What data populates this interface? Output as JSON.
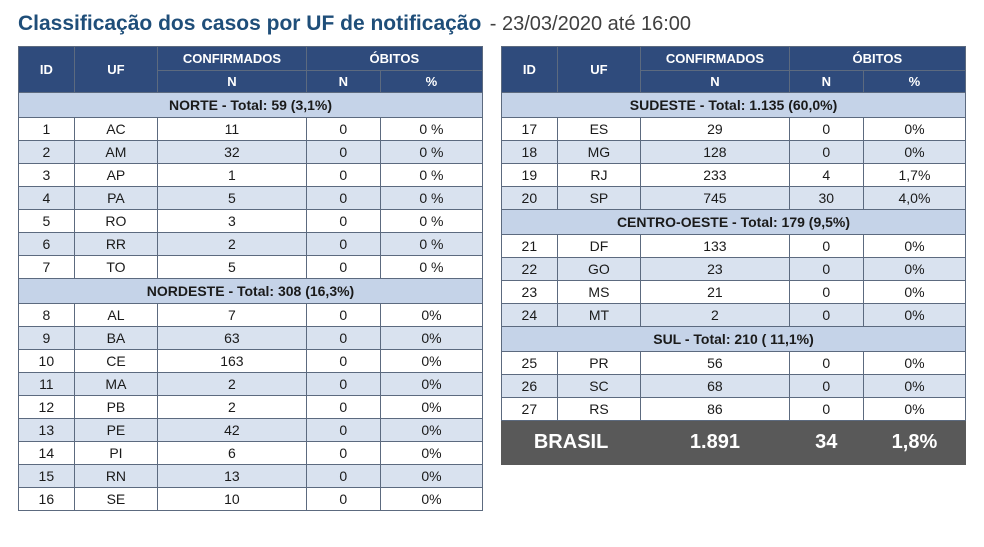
{
  "title_main": "Classificação dos casos por UF de notificação",
  "title_sub": "- 23/03/2020 até 16:00",
  "headers": {
    "id": "ID",
    "uf": "UF",
    "confirmados": "CONFIRMADOS",
    "obitos": "ÓBITOS",
    "n": "N",
    "pct": "%"
  },
  "regions_left": [
    {
      "label": "NORTE - Total: 59 (3,1%)",
      "rows": [
        {
          "id": "1",
          "uf": "AC",
          "conf": "11",
          "obn": "0",
          "obp": "0 %"
        },
        {
          "id": "2",
          "uf": "AM",
          "conf": "32",
          "obn": "0",
          "obp": "0 %"
        },
        {
          "id": "3",
          "uf": "AP",
          "conf": "1",
          "obn": "0",
          "obp": "0 %"
        },
        {
          "id": "4",
          "uf": "PA",
          "conf": "5",
          "obn": "0",
          "obp": "0 %"
        },
        {
          "id": "5",
          "uf": "RO",
          "conf": "3",
          "obn": "0",
          "obp": "0 %"
        },
        {
          "id": "6",
          "uf": "RR",
          "conf": "2",
          "obn": "0",
          "obp": "0 %"
        },
        {
          "id": "7",
          "uf": "TO",
          "conf": "5",
          "obn": "0",
          "obp": "0 %"
        }
      ]
    },
    {
      "label": "NORDESTE - Total: 308 (16,3%)",
      "rows": [
        {
          "id": "8",
          "uf": "AL",
          "conf": "7",
          "obn": "0",
          "obp": "0%"
        },
        {
          "id": "9",
          "uf": "BA",
          "conf": "63",
          "obn": "0",
          "obp": "0%"
        },
        {
          "id": "10",
          "uf": "CE",
          "conf": "163",
          "obn": "0",
          "obp": "0%"
        },
        {
          "id": "11",
          "uf": "MA",
          "conf": "2",
          "obn": "0",
          "obp": "0%"
        },
        {
          "id": "12",
          "uf": "PB",
          "conf": "2",
          "obn": "0",
          "obp": "0%"
        },
        {
          "id": "13",
          "uf": "PE",
          "conf": "42",
          "obn": "0",
          "obp": "0%"
        },
        {
          "id": "14",
          "uf": "PI",
          "conf": "6",
          "obn": "0",
          "obp": "0%"
        },
        {
          "id": "15",
          "uf": "RN",
          "conf": "13",
          "obn": "0",
          "obp": "0%"
        },
        {
          "id": "16",
          "uf": "SE",
          "conf": "10",
          "obn": "0",
          "obp": "0%"
        }
      ]
    }
  ],
  "regions_right": [
    {
      "label": "SUDESTE - Total:  1.135 (60,0%)",
      "rows": [
        {
          "id": "17",
          "uf": "ES",
          "conf": "29",
          "obn": "0",
          "obp": "0%"
        },
        {
          "id": "18",
          "uf": "MG",
          "conf": "128",
          "obn": "0",
          "obp": "0%"
        },
        {
          "id": "19",
          "uf": "RJ",
          "conf": "233",
          "obn": "4",
          "obp": "1,7%"
        },
        {
          "id": "20",
          "uf": "SP",
          "conf": "745",
          "obn": "30",
          "obp": "4,0%"
        }
      ]
    },
    {
      "label": "CENTRO-OESTE - Total: 179 (9,5%)",
      "rows": [
        {
          "id": "21",
          "uf": "DF",
          "conf": "133",
          "obn": "0",
          "obp": "0%"
        },
        {
          "id": "22",
          "uf": "GO",
          "conf": "23",
          "obn": "0",
          "obp": "0%"
        },
        {
          "id": "23",
          "uf": "MS",
          "conf": "21",
          "obn": "0",
          "obp": "0%"
        },
        {
          "id": "24",
          "uf": "MT",
          "conf": "2",
          "obn": "0",
          "obp": "0%"
        }
      ]
    },
    {
      "label": "SUL - Total:  210 ( 11,1%)",
      "rows": [
        {
          "id": "25",
          "uf": "PR",
          "conf": "56",
          "obn": "0",
          "obp": "0%"
        },
        {
          "id": "26",
          "uf": "SC",
          "conf": "68",
          "obn": "0",
          "obp": "0%"
        },
        {
          "id": "27",
          "uf": "RS",
          "conf": "86",
          "obn": "0",
          "obp": "0%"
        }
      ]
    }
  ],
  "total": {
    "label": "BRASIL",
    "conf": "1.891",
    "obn": "34",
    "obp": "1,8%"
  },
  "colors": {
    "header_bg": "#2f4b7c",
    "header_fg": "#ffffff",
    "region_bg": "#c5d3e8",
    "row_alt_bg": "#d9e2ef",
    "border": "#5c6a7f",
    "title_color": "#1f4e79",
    "total_bg": "#595959",
    "total_fg": "#ffffff"
  }
}
